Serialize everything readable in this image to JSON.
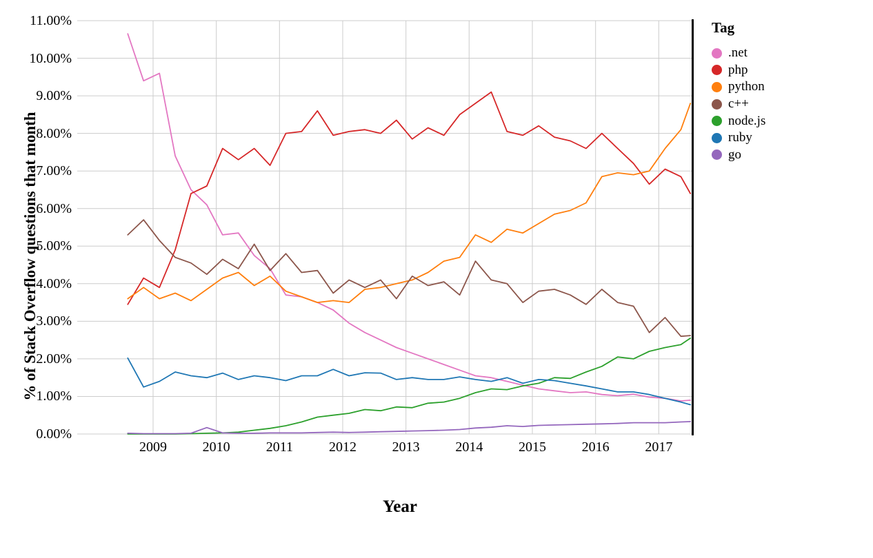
{
  "chart_data": {
    "type": "line",
    "xlabel": "Year",
    "ylabel": "% of Stack Overflow questions that month",
    "legend_title": "Tag",
    "legend_position": "right",
    "grid": true,
    "xlim": [
      2007.8,
      2017.52
    ],
    "ylim": [
      0,
      11
    ],
    "x_ticks": [
      2009,
      2010,
      2011,
      2012,
      2013,
      2014,
      2015,
      2016,
      2017
    ],
    "y_ticks": [
      "0.00%",
      "1.00%",
      "2.00%",
      "3.00%",
      "4.00%",
      "5.00%",
      "6.00%",
      "7.00%",
      "8.00%",
      "9.00%",
      "10.00%",
      "11.00%"
    ],
    "x": [
      2008.6,
      2008.85,
      2009.1,
      2009.35,
      2009.6,
      2009.85,
      2010.1,
      2010.35,
      2010.6,
      2010.85,
      2011.1,
      2011.35,
      2011.6,
      2011.85,
      2012.1,
      2012.35,
      2012.6,
      2012.85,
      2013.1,
      2013.35,
      2013.6,
      2013.85,
      2014.1,
      2014.35,
      2014.6,
      2014.85,
      2015.1,
      2015.35,
      2015.6,
      2015.85,
      2016.1,
      2016.35,
      2016.6,
      2016.85,
      2017.1,
      2017.35,
      2017.5
    ],
    "series": [
      {
        "name": ".net",
        "color": "#e377c2",
        "values": [
          10.65,
          9.4,
          9.6,
          7.4,
          6.5,
          6.1,
          5.3,
          5.35,
          4.75,
          4.4,
          3.7,
          3.65,
          3.5,
          3.3,
          2.95,
          2.7,
          2.5,
          2.3,
          2.15,
          2.0,
          1.85,
          1.7,
          1.55,
          1.5,
          1.4,
          1.3,
          1.2,
          1.15,
          1.1,
          1.12,
          1.05,
          1.02,
          1.06,
          0.98,
          0.95,
          0.88,
          0.9
        ]
      },
      {
        "name": "php",
        "color": "#d62728",
        "values": [
          3.45,
          4.15,
          3.9,
          4.9,
          6.4,
          6.6,
          7.6,
          7.3,
          7.6,
          7.15,
          8.0,
          8.05,
          8.6,
          7.95,
          8.05,
          8.1,
          8.0,
          8.35,
          7.85,
          8.15,
          7.95,
          8.5,
          8.8,
          9.1,
          8.05,
          7.95,
          8.2,
          7.9,
          7.8,
          7.6,
          8.0,
          7.6,
          7.2,
          6.65,
          7.05,
          6.85,
          6.4
        ]
      },
      {
        "name": "python",
        "color": "#ff7f0e",
        "values": [
          3.6,
          3.9,
          3.6,
          3.75,
          3.55,
          3.85,
          4.15,
          4.3,
          3.95,
          4.2,
          3.8,
          3.65,
          3.5,
          3.55,
          3.5,
          3.85,
          3.9,
          4.0,
          4.1,
          4.3,
          4.6,
          4.7,
          5.3,
          5.1,
          5.45,
          5.35,
          5.6,
          5.85,
          5.95,
          6.15,
          6.85,
          6.95,
          6.9,
          7.0,
          7.6,
          8.1,
          8.8
        ]
      },
      {
        "name": "c++",
        "color": "#8c564b",
        "values": [
          5.3,
          5.7,
          5.15,
          4.7,
          4.55,
          4.25,
          4.65,
          4.4,
          5.05,
          4.35,
          4.8,
          4.3,
          4.35,
          3.75,
          4.1,
          3.9,
          4.1,
          3.6,
          4.2,
          3.95,
          4.05,
          3.7,
          4.6,
          4.1,
          4.0,
          3.5,
          3.8,
          3.85,
          3.7,
          3.45,
          3.85,
          3.5,
          3.4,
          2.7,
          3.1,
          2.6,
          2.62
        ]
      },
      {
        "name": "node.js",
        "color": "#2ca02c",
        "values": [
          0.0,
          0.0,
          0.0,
          0.0,
          0.01,
          0.02,
          0.03,
          0.05,
          0.1,
          0.15,
          0.22,
          0.32,
          0.45,
          0.5,
          0.55,
          0.65,
          0.62,
          0.72,
          0.7,
          0.82,
          0.85,
          0.95,
          1.1,
          1.2,
          1.18,
          1.28,
          1.35,
          1.5,
          1.48,
          1.65,
          1.8,
          2.05,
          2.0,
          2.2,
          2.3,
          2.38,
          2.55
        ]
      },
      {
        "name": "ruby",
        "color": "#1f77b4",
        "values": [
          2.02,
          1.25,
          1.4,
          1.65,
          1.55,
          1.5,
          1.62,
          1.45,
          1.55,
          1.5,
          1.42,
          1.55,
          1.55,
          1.72,
          1.55,
          1.63,
          1.62,
          1.45,
          1.5,
          1.45,
          1.45,
          1.52,
          1.45,
          1.4,
          1.5,
          1.35,
          1.45,
          1.42,
          1.35,
          1.28,
          1.2,
          1.12,
          1.12,
          1.05,
          0.95,
          0.85,
          0.78
        ]
      },
      {
        "name": "go",
        "color": "#9467bd",
        "values": [
          0.02,
          0.01,
          0.01,
          0.01,
          0.02,
          0.17,
          0.03,
          0.02,
          0.02,
          0.03,
          0.03,
          0.03,
          0.04,
          0.05,
          0.04,
          0.05,
          0.06,
          0.07,
          0.08,
          0.09,
          0.1,
          0.12,
          0.16,
          0.18,
          0.22,
          0.2,
          0.23,
          0.24,
          0.25,
          0.26,
          0.27,
          0.28,
          0.3,
          0.3,
          0.3,
          0.32,
          0.33
        ]
      }
    ],
    "styles": {
      "grid_color": "#cccccc",
      "spine_color": "#000000",
      "text_color": "#000000",
      "line_width": 1.8
    }
  }
}
